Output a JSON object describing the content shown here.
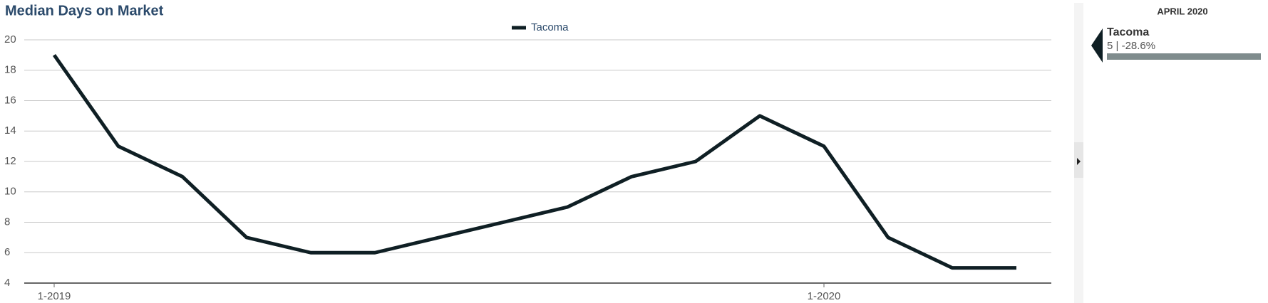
{
  "chart_data": {
    "type": "line",
    "title": "Median Days on Market",
    "categories": [
      "1-2019",
      null,
      null,
      null,
      null,
      null,
      null,
      null,
      null,
      null,
      null,
      null,
      "1-2020",
      null,
      null,
      null
    ],
    "series": [
      {
        "name": "Tacoma",
        "color": "#0f1f24",
        "values": [
          19,
          13,
          11,
          7,
          6,
          6,
          7,
          8,
          9,
          11,
          12,
          15,
          13,
          7,
          5,
          5
        ]
      }
    ],
    "ylim": [
      4,
      20
    ],
    "yticks": [
      4,
      6,
      8,
      10,
      12,
      14,
      16,
      18,
      20
    ],
    "grid": true,
    "legend": "top"
  },
  "sidebar": {
    "period": "APRIL 2020",
    "name": "Tacoma",
    "detail": "5 | -28.6%"
  }
}
